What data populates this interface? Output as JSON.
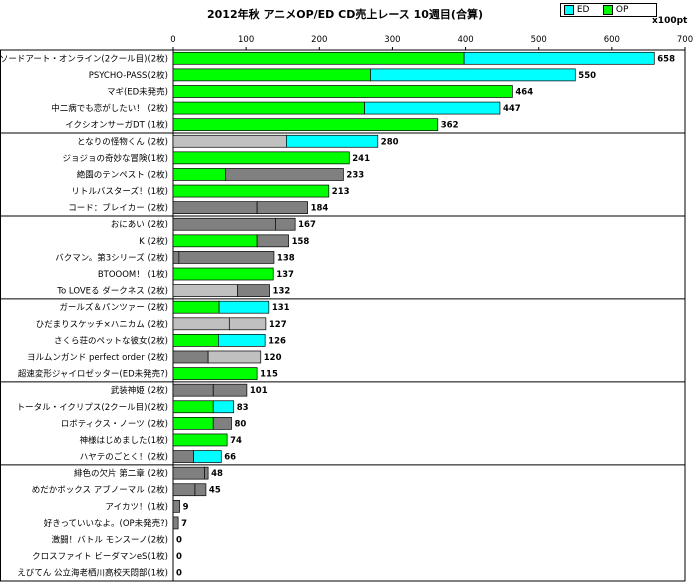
{
  "chart_data": {
    "type": "bar",
    "orientation": "horizontal",
    "stacked": true,
    "title": "2012年秋 アニメOP/ED CD売上レース 10週目(合算)",
    "unit": "x100pt",
    "xlim": [
      0,
      700
    ],
    "xticks": [
      0,
      100,
      200,
      300,
      400,
      500,
      600,
      700
    ],
    "grid": false,
    "legend": {
      "placement": "top-right",
      "entries": [
        {
          "name": "ED",
          "color": "#00ffff"
        },
        {
          "name": "OP",
          "color": "#00ff00"
        }
      ]
    },
    "colors": {
      "OP": "#00ff00",
      "ED": "#00ffff",
      "op_dark": "#808080",
      "ed_light": "#c0c0c0"
    },
    "bars": [
      {
        "label": "ソードアート・オンライン(2クール目)(2枚)",
        "segments": [
          {
            "value": 398,
            "color": "#00ff00"
          },
          {
            "value": 260,
            "color": "#00ffff"
          }
        ],
        "total": 658
      },
      {
        "label": "PSYCHO-PASS(2枚)",
        "segments": [
          {
            "value": 270,
            "color": "#00ff00"
          },
          {
            "value": 280,
            "color": "#00ffff"
          }
        ],
        "total": 550
      },
      {
        "label": "マギ(ED未発売)",
        "segments": [
          {
            "value": 464,
            "color": "#00ff00"
          }
        ],
        "total": 464
      },
      {
        "label": "中二病でも恋がしたい！ (2枚)",
        "segments": [
          {
            "value": 262,
            "color": "#00ff00"
          },
          {
            "value": 185,
            "color": "#00ffff"
          }
        ],
        "total": 447
      },
      {
        "label": "イクシオンサーガDT (1枚)",
        "segments": [
          {
            "value": 362,
            "color": "#00ff00"
          }
        ],
        "total": 362
      },
      {
        "label": "となりの怪物くん (2枚)",
        "segments": [
          {
            "value": 155,
            "color": "#c0c0c0"
          },
          {
            "value": 125,
            "color": "#00ffff"
          }
        ],
        "total": 280
      },
      {
        "label": "ジョジョの奇妙な冒険(1枚)",
        "segments": [
          {
            "value": 241,
            "color": "#00ff00"
          }
        ],
        "total": 241
      },
      {
        "label": "絶園のテンペスト (2枚)",
        "segments": [
          {
            "value": 72,
            "color": "#00ff00"
          },
          {
            "value": 161,
            "color": "#808080"
          }
        ],
        "total": 233
      },
      {
        "label": "リトルバスターズ！(1枚)",
        "segments": [
          {
            "value": 213,
            "color": "#00ff00"
          }
        ],
        "total": 213
      },
      {
        "label": "コード：ブレイカー (2枚)",
        "segments": [
          {
            "value": 115,
            "color": "#808080"
          },
          {
            "value": 69,
            "color": "#808080"
          }
        ],
        "total": 184
      },
      {
        "label": "おにあい (2枚)",
        "segments": [
          {
            "value": 140,
            "color": "#808080"
          },
          {
            "value": 27,
            "color": "#808080"
          }
        ],
        "total": 167
      },
      {
        "label": "K (2枚)",
        "segments": [
          {
            "value": 115,
            "color": "#00ff00"
          },
          {
            "value": 43,
            "color": "#808080"
          }
        ],
        "total": 158
      },
      {
        "label": "バクマン。第3シリーズ (2枚)",
        "segments": [
          {
            "value": 8,
            "color": "#808080"
          },
          {
            "value": 130,
            "color": "#808080"
          }
        ],
        "total": 138
      },
      {
        "label": "BTOOOM！ (1枚)",
        "segments": [
          {
            "value": 137,
            "color": "#00ff00"
          }
        ],
        "total": 137
      },
      {
        "label": "To LOVEる ダークネス (2枚)",
        "segments": [
          {
            "value": 88,
            "color": "#c0c0c0"
          },
          {
            "value": 44,
            "color": "#808080"
          }
        ],
        "total": 132
      },
      {
        "label": "ガールズ＆パンツァー (2枚)",
        "segments": [
          {
            "value": 63,
            "color": "#00ff00"
          },
          {
            "value": 68,
            "color": "#00ffff"
          }
        ],
        "total": 131
      },
      {
        "label": "ひだまりスケッチ×ハニカム (2枚)",
        "segments": [
          {
            "value": 77,
            "color": "#c0c0c0"
          },
          {
            "value": 50,
            "color": "#c0c0c0"
          }
        ],
        "total": 127
      },
      {
        "label": "さくら荘のペットな彼女(2枚)",
        "segments": [
          {
            "value": 62,
            "color": "#00ff00"
          },
          {
            "value": 64,
            "color": "#00ffff"
          }
        ],
        "total": 126
      },
      {
        "label": "ヨルムンガンド perfect order (2枚)",
        "segments": [
          {
            "value": 48,
            "color": "#808080"
          },
          {
            "value": 72,
            "color": "#c0c0c0"
          }
        ],
        "total": 120
      },
      {
        "label": "超速変形ジャイロゼッター(ED未発売?)",
        "segments": [
          {
            "value": 115,
            "color": "#00ff00"
          }
        ],
        "total": 115
      },
      {
        "label": "武装神姫 (2枚)",
        "segments": [
          {
            "value": 55,
            "color": "#808080"
          },
          {
            "value": 46,
            "color": "#808080"
          }
        ],
        "total": 101
      },
      {
        "label": "トータル・イクリプス(2クール目)(2枚)",
        "segments": [
          {
            "value": 55,
            "color": "#00ff00"
          },
          {
            "value": 28,
            "color": "#00ffff"
          }
        ],
        "total": 83
      },
      {
        "label": "ロボティクス・ノーツ (2枚)",
        "segments": [
          {
            "value": 55,
            "color": "#00ff00"
          },
          {
            "value": 25,
            "color": "#808080"
          }
        ],
        "total": 80
      },
      {
        "label": "神様はじめました(1枚)",
        "segments": [
          {
            "value": 74,
            "color": "#00ff00"
          }
        ],
        "total": 74
      },
      {
        "label": "ハヤテのごとく！(2枚)",
        "segments": [
          {
            "value": 28,
            "color": "#808080"
          },
          {
            "value": 38,
            "color": "#00ffff"
          }
        ],
        "total": 66
      },
      {
        "label": "緋色の欠片 第二章 (2枚)",
        "segments": [
          {
            "value": 43,
            "color": "#808080"
          },
          {
            "value": 5,
            "color": "#808080"
          }
        ],
        "total": 48
      },
      {
        "label": "めだかボックス アブノーマル (2枚)",
        "segments": [
          {
            "value": 30,
            "color": "#808080"
          },
          {
            "value": 15,
            "color": "#808080"
          }
        ],
        "total": 45
      },
      {
        "label": "アイカツ！(1枚)",
        "segments": [
          {
            "value": 9,
            "color": "#808080"
          }
        ],
        "total": 9
      },
      {
        "label": "好きっていいなよ。(OP未発売?)",
        "segments": [
          {
            "value": 7,
            "color": "#808080"
          }
        ],
        "total": 7
      },
      {
        "label": "激闘！バトル モンスーノ(2枚)",
        "segments": [],
        "total": 0
      },
      {
        "label": "クロスファイト ビーダマンeS(1枚)",
        "segments": [],
        "total": 0
      },
      {
        "label": "えびてん 公立海老栖川高校天悶部(1枚)",
        "segments": [],
        "total": 0
      }
    ],
    "group_separators_after": [
      4,
      9,
      14,
      19,
      24
    ]
  }
}
